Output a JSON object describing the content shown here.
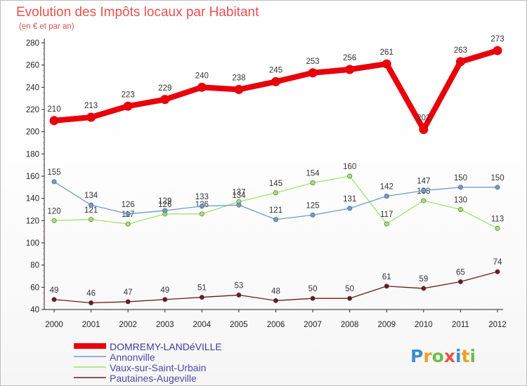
{
  "chart_data": {
    "type": "line",
    "title": "Evolution des Impôts locaux par Habitant",
    "subtitle": "(en € et par an)",
    "xlabel": "",
    "ylabel": "",
    "ylim": [
      40,
      280
    ],
    "yticks": [
      40,
      60,
      80,
      100,
      120,
      140,
      160,
      180,
      200,
      220,
      240,
      260,
      280
    ],
    "grid": false,
    "legend_position": "bottom-left",
    "x": [
      "2000",
      "2001",
      "2002",
      "2003",
      "2004",
      "2005",
      "2006",
      "2007",
      "2008",
      "2009",
      "2010",
      "2011",
      "2012"
    ],
    "series": [
      {
        "name": "DOMREMY-LANDéVILLE",
        "color": "#e8000b",
        "values": [
          210,
          213,
          223,
          229,
          240,
          238,
          245,
          253,
          256,
          261,
          202,
          263,
          273
        ]
      },
      {
        "name": "Annonville",
        "color": "#6c9bd2",
        "values": [
          155,
          134,
          126,
          129,
          133,
          134,
          121,
          125,
          131,
          142,
          147,
          150,
          150
        ]
      },
      {
        "name": "Vaux-sur-Saint-Urbain",
        "color": "#9ee567",
        "values": [
          120,
          121,
          117,
          126,
          126,
          137,
          145,
          154,
          160,
          117,
          138,
          130,
          113
        ]
      },
      {
        "name": "Pautaines-Augeville",
        "color": "#6b1a1e",
        "values": [
          49,
          46,
          47,
          49,
          51,
          53,
          48,
          50,
          50,
          61,
          59,
          65,
          74
        ]
      }
    ]
  },
  "logo": {
    "letters": [
      "P",
      "r",
      "o",
      "x",
      "i",
      "t",
      "i"
    ],
    "colors": [
      "#3b8ed0",
      "#f0a21b",
      "#6cc04a",
      "#e8514e",
      "#3b8ed0",
      "#f0a21b",
      "#6cc04a"
    ]
  }
}
